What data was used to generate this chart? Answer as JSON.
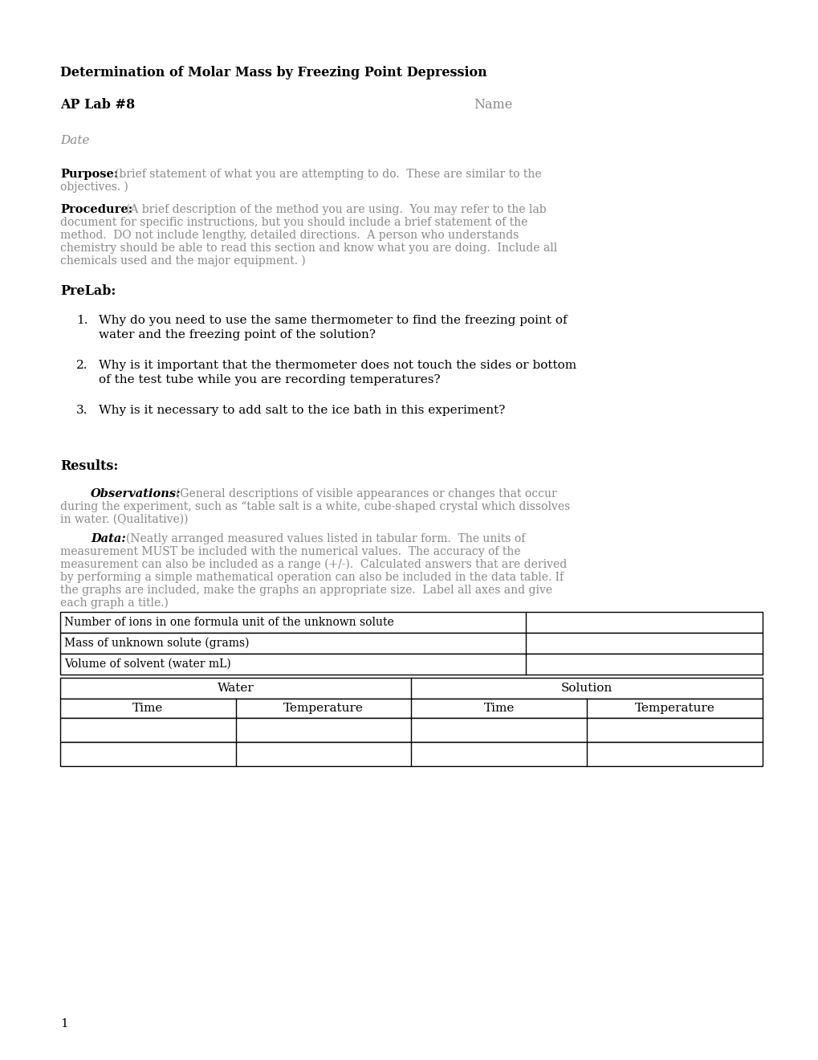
{
  "title": "Determination of Molar Mass by Freezing Point Depression",
  "lab_label": "AP Lab #8",
  "name_label": "Name",
  "date_label": "Date",
  "purpose_bold": "Purpose:",
  "purpose_line1": "(brief statement of what you are attempting to do.  These are similar to the",
  "purpose_line2": "objectives. )",
  "procedure_bold": "Procedure:",
  "procedure_lines": [
    "(A brief description of the method you are using.  You may refer to the lab",
    "document for specific instructions, but you should include a brief statement of the",
    "method.  DO not include lengthy, detailed directions.  A person who understands",
    "chemistry should be able to read this section and know what you are doing.  Include all",
    "chemicals used and the major equipment. )"
  ],
  "prelab_header": "PreLab:",
  "q1_line1": "Why do you need to use the same thermometer to find the freezing point of",
  "q1_line2": "water and the freezing point of the solution?",
  "q2_line1": "Why is it important that the thermometer does not touch the sides or bottom",
  "q2_line2": "of the test tube while you are recording temperatures?",
  "q3_line1": "Why is it necessary to add salt to the ice bath in this experiment?",
  "results_header": "Results:",
  "obs_bold": "Observations:",
  "obs_line1": "(General descriptions of visible appearances or changes that occur",
  "obs_line2": "during the experiment, such as “table salt is a white, cube-shaped crystal which dissolves",
  "obs_line3": "in water. (Qualitative))",
  "data_bold": "Data:",
  "data_line1": "(Neatly arranged measured values listed in tabular form.  The units of",
  "data_lines": [
    "measurement MUST be included with the numerical values.  The accuracy of the",
    "measurement can also be included as a range (+/-).  Calculated answers that are derived",
    "by performing a simple mathematical operation can also be included in the data table. If",
    "the graphs are included, make the graphs an appropriate size.  Label all axes and give",
    "each graph a title.)"
  ],
  "table1_rows": [
    "Number of ions in one formula unit of the unknown solute",
    "Mass of unknown solute (grams)",
    "Volume of solvent (water mL)"
  ],
  "table2_top_headers": [
    "Water",
    "Solution"
  ],
  "table2_sub_headers": [
    "Time",
    "Temperature",
    "Time",
    "Temperature"
  ],
  "page_number": "1",
  "bg_color": "#ffffff",
  "black": "#000000",
  "gray": "#888888"
}
